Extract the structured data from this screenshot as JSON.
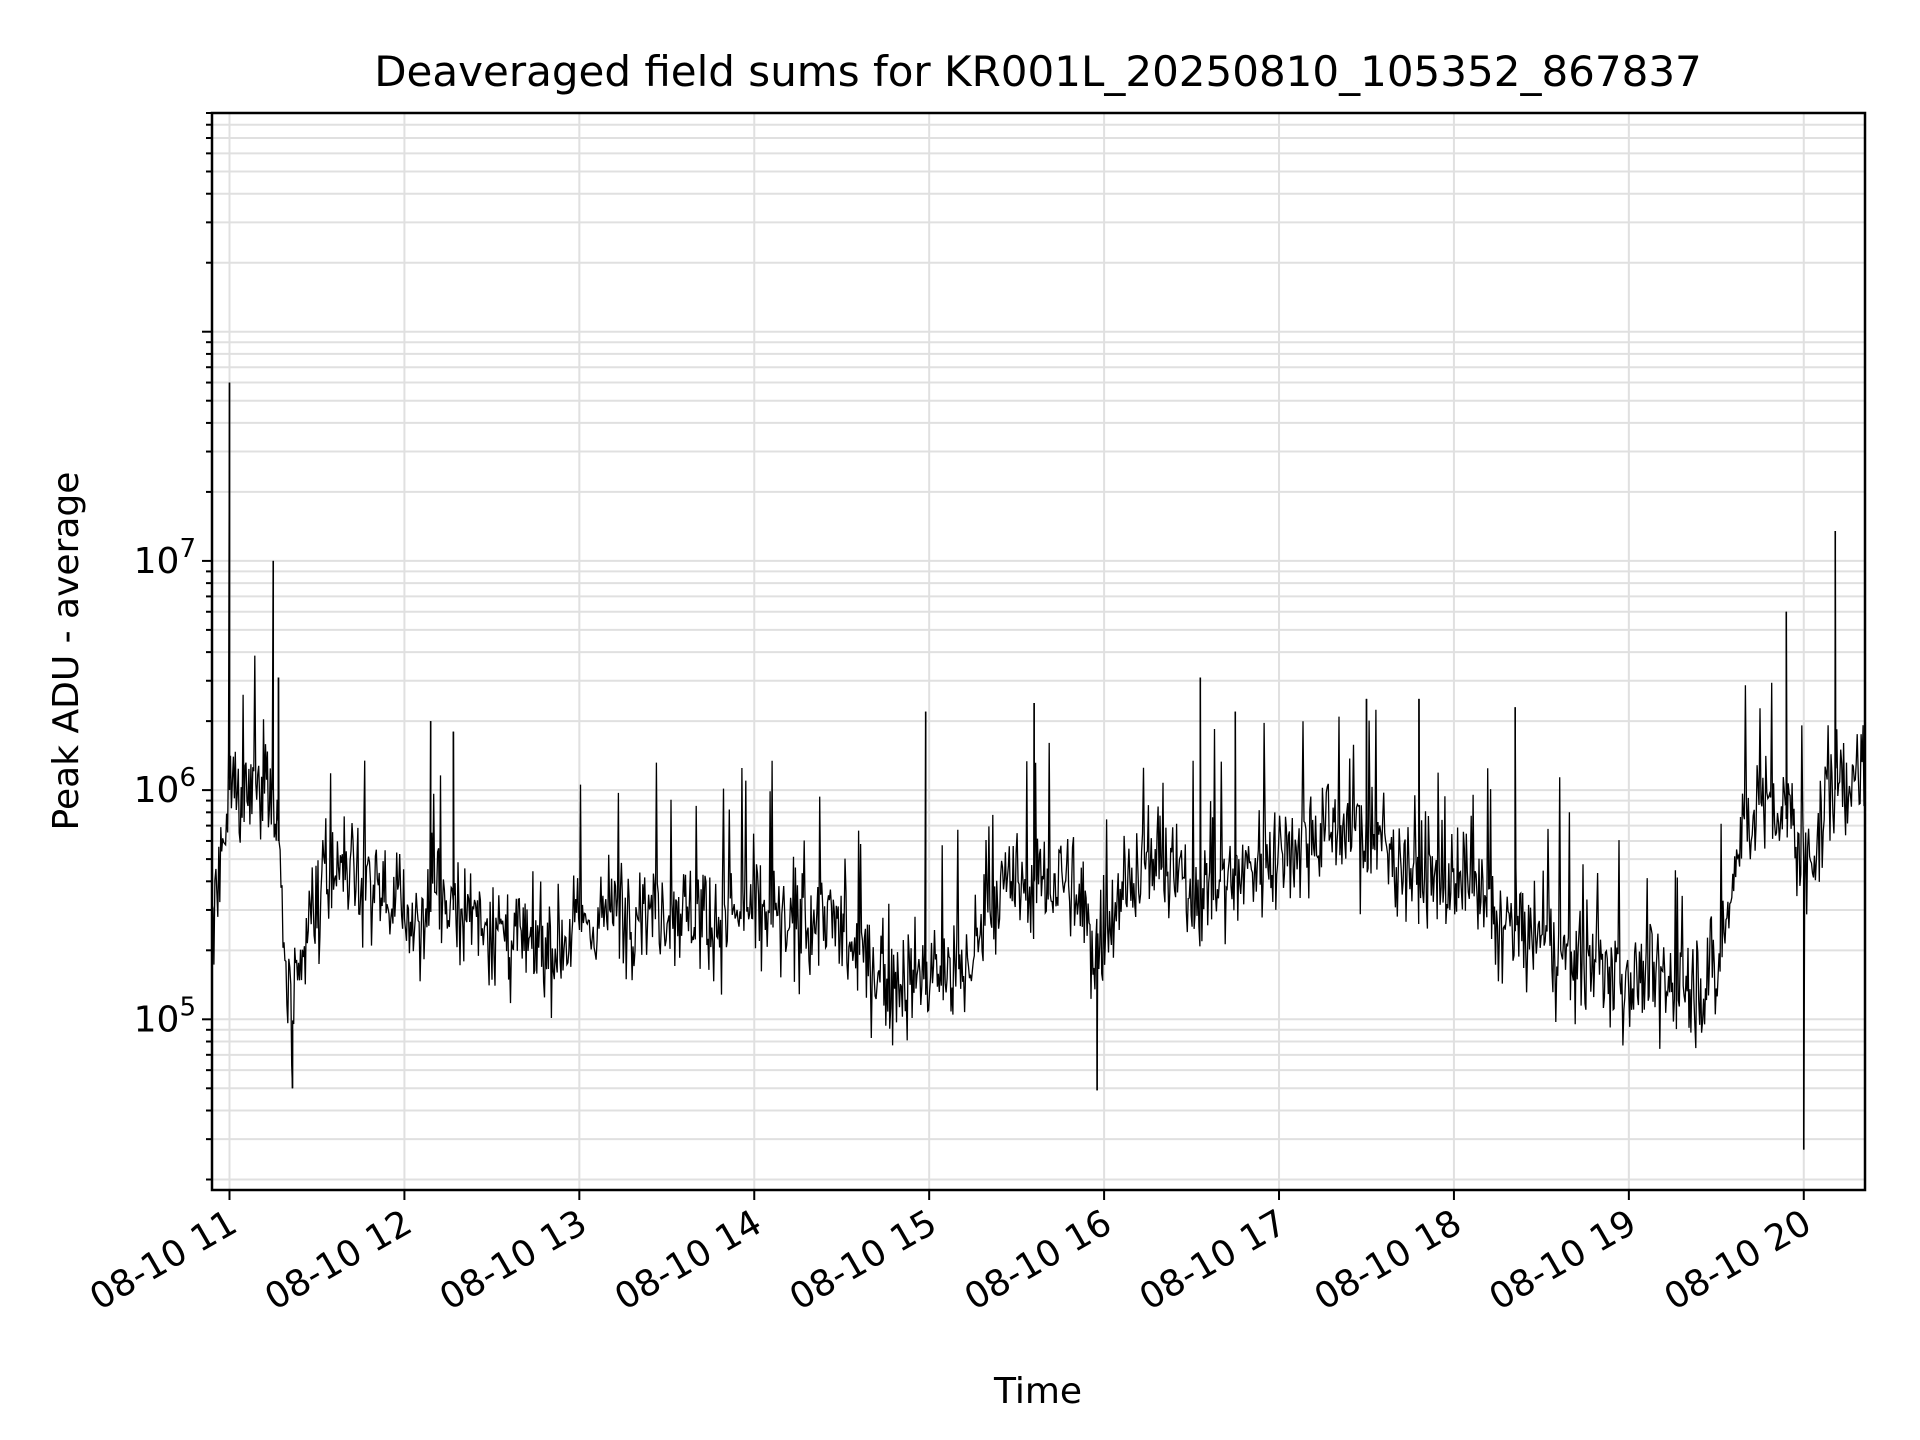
{
  "chart_data": {
    "type": "line",
    "title": "Deaveraged field sums for KR001L_20250810_105352_867837",
    "xlabel": "Time",
    "ylabel": "Peak ADU - average",
    "x_ticks": [
      "08-10 11",
      "08-10 12",
      "08-10 13",
      "08-10 14",
      "08-10 15",
      "08-10 16",
      "08-10 17",
      "08-10 18",
      "08-10 19",
      "08-10 20"
    ],
    "x_tick_hours": [
      11,
      12,
      13,
      14,
      15,
      16,
      17,
      18,
      19,
      20
    ],
    "xlim_hours": [
      10.9,
      20.35
    ],
    "y_scale": "log",
    "ylim": [
      18000,
      900000000
    ],
    "y_ticks": [
      {
        "base": "10",
        "exp": "5",
        "value": 100000
      },
      {
        "base": "10",
        "exp": "6",
        "value": 1000000
      },
      {
        "base": "10",
        "exp": "7",
        "value": 10000000
      }
    ],
    "grid": true,
    "line_color": "#000000",
    "grid_color": "#e0e0e0",
    "series": [
      {
        "name": "",
        "x_hours": [
          10.9,
          10.97,
          11.0,
          11.15,
          11.25,
          11.28,
          11.32,
          11.36,
          11.45,
          11.6,
          11.8,
          12.0,
          12.12,
          12.15,
          12.25,
          12.4,
          12.6,
          12.8,
          13.0,
          13.2,
          13.4,
          13.6,
          13.8,
          14.0,
          14.2,
          14.4,
          14.6,
          14.8,
          15.0,
          15.2,
          15.4,
          15.6,
          15.8,
          15.95,
          16.1,
          16.3,
          16.5,
          16.7,
          16.9,
          17.1,
          17.3,
          17.5,
          17.7,
          17.9,
          18.1,
          18.3,
          18.5,
          18.7,
          18.9,
          19.1,
          19.3,
          19.5,
          19.65,
          19.75,
          19.85,
          19.95,
          20.0,
          20.1,
          20.2,
          20.35
        ],
        "values": [
          250000,
          500000,
          1000000,
          1100000,
          1000000,
          600000,
          150000,
          90000,
          250000,
          450000,
          400000,
          300000,
          250000,
          400000,
          300000,
          300000,
          220000,
          200000,
          250000,
          300000,
          320000,
          300000,
          280000,
          300000,
          250000,
          300000,
          180000,
          150000,
          150000,
          160000,
          350000,
          400000,
          400000,
          200000,
          400000,
          500000,
          350000,
          400000,
          500000,
          600000,
          700000,
          650000,
          500000,
          400000,
          350000,
          250000,
          220000,
          180000,
          160000,
          150000,
          140000,
          150000,
          700000,
          900000,
          800000,
          700000,
          450000,
          700000,
          1100000,
          1200000
        ]
      }
    ],
    "spikes": [
      {
        "x_hours": 11.0,
        "value": 60000000
      },
      {
        "x_hours": 11.25,
        "value": 10000000
      },
      {
        "x_hours": 11.28,
        "value": 3100000
      },
      {
        "x_hours": 11.36,
        "value": 50000
      },
      {
        "x_hours": 12.15,
        "value": 2000000
      },
      {
        "x_hours": 12.28,
        "value": 1800000
      },
      {
        "x_hours": 14.98,
        "value": 2200000
      },
      {
        "x_hours": 15.6,
        "value": 2400000
      },
      {
        "x_hours": 15.96,
        "value": 49000
      },
      {
        "x_hours": 16.55,
        "value": 3100000
      },
      {
        "x_hours": 16.75,
        "value": 2200000
      },
      {
        "x_hours": 17.5,
        "value": 2500000
      },
      {
        "x_hours": 17.8,
        "value": 2500000
      },
      {
        "x_hours": 18.35,
        "value": 2300000
      },
      {
        "x_hours": 19.9,
        "value": 6000000
      },
      {
        "x_hours": 20.0,
        "value": 27000
      },
      {
        "x_hours": 20.18,
        "value": 13500000
      }
    ]
  }
}
